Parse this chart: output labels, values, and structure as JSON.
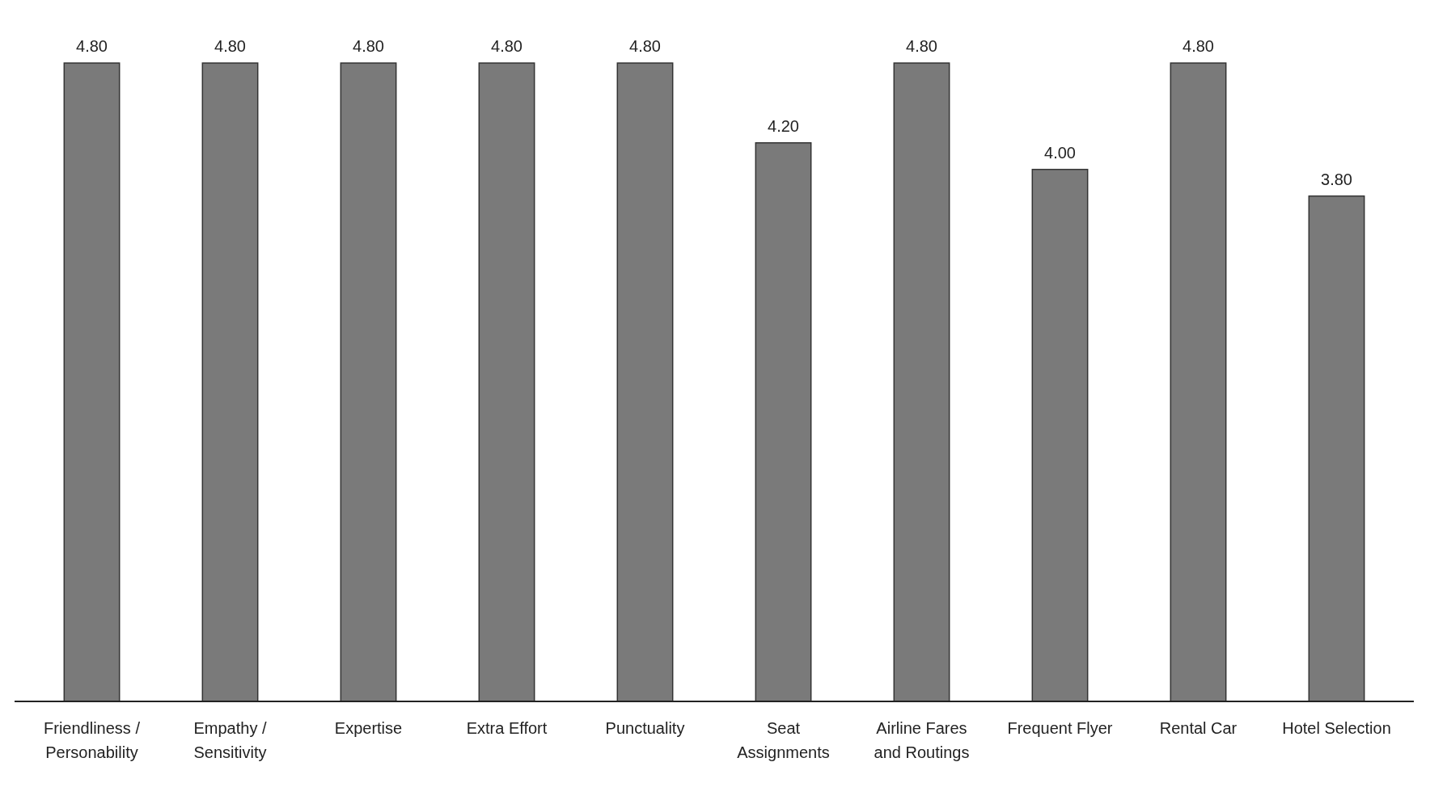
{
  "chart_data": {
    "type": "bar",
    "categories": [
      "Friendliness / Personability",
      "Empathy / Sensitivity",
      "Expertise",
      "Extra Effort",
      "Punctuality",
      "Seat Assignments",
      "Airline Fares and Routings",
      "Frequent Flyer",
      "Rental Car",
      "Hotel Selection"
    ],
    "values": [
      4.8,
      4.8,
      4.8,
      4.8,
      4.8,
      4.2,
      4.8,
      4.0,
      4.8,
      3.8
    ],
    "value_labels": [
      "4.80",
      "4.80",
      "4.80",
      "4.80",
      "4.80",
      "4.20",
      "4.80",
      "4.00",
      "4.80",
      "3.80"
    ],
    "color": "#7a7a7a"
  }
}
